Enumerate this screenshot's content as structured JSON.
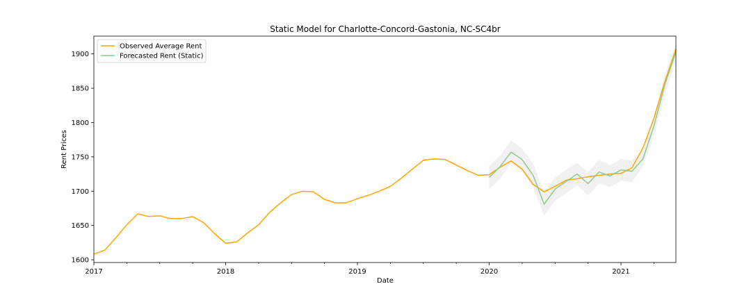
{
  "chart_data": {
    "type": "line",
    "title": "Static Model for Charlotte-Concord-Gastonia, NC-SC4br",
    "xlabel": "Date",
    "ylabel": "Rent Prices",
    "xlim": [
      "2017-01",
      "2021-06"
    ],
    "ylim": [
      1596,
      1926
    ],
    "x_ticks": [
      "2017",
      "2018",
      "2019",
      "2020",
      "2021"
    ],
    "y_ticks": [
      1600,
      1650,
      1700,
      1750,
      1800,
      1850,
      1900
    ],
    "grid": false,
    "legend_position": "top-left",
    "series": [
      {
        "name": "Observed Average Rent",
        "color": "#ffa500",
        "x": [
          "2017-01",
          "2017-02",
          "2017-03",
          "2017-04",
          "2017-05",
          "2017-06",
          "2017-07",
          "2017-08",
          "2017-09",
          "2017-10",
          "2017-11",
          "2017-12",
          "2018-01",
          "2018-02",
          "2018-03",
          "2018-04",
          "2018-05",
          "2018-06",
          "2018-07",
          "2018-08",
          "2018-09",
          "2018-10",
          "2018-11",
          "2018-12",
          "2019-01",
          "2019-02",
          "2019-03",
          "2019-04",
          "2019-05",
          "2019-06",
          "2019-07",
          "2019-08",
          "2019-09",
          "2019-10",
          "2019-11",
          "2019-12",
          "2020-01",
          "2020-02",
          "2020-03",
          "2020-04",
          "2020-05",
          "2020-06",
          "2020-07",
          "2020-08",
          "2020-09",
          "2020-10",
          "2020-11",
          "2020-12",
          "2021-01",
          "2021-02",
          "2021-03",
          "2021-04",
          "2021-05",
          "2021-06"
        ],
        "values": [
          1608,
          1614,
          1632,
          1651,
          1667,
          1663,
          1664,
          1660,
          1660,
          1663,
          1654,
          1638,
          1624,
          1626,
          1639,
          1651,
          1669,
          1683,
          1695,
          1700,
          1699,
          1688,
          1683,
          1683,
          1689,
          1694,
          1700,
          1707,
          1719,
          1732,
          1745,
          1747,
          1746,
          1738,
          1730,
          1723,
          1724,
          1735,
          1744,
          1732,
          1710,
          1699,
          1707,
          1716,
          1718,
          1721,
          1723,
          1725,
          1726,
          1734,
          1763,
          1806,
          1860,
          1907
        ]
      },
      {
        "name": "Forecasted Rent (Static)",
        "color": "#8fc98f",
        "x": [
          "2020-01",
          "2020-02",
          "2020-03",
          "2020-04",
          "2020-05",
          "2020-06",
          "2020-07",
          "2020-08",
          "2020-09",
          "2020-10",
          "2020-11",
          "2020-12",
          "2021-01",
          "2021-02",
          "2021-03",
          "2021-04",
          "2021-05",
          "2021-06"
        ],
        "values": [
          1720,
          1736,
          1757,
          1746,
          1723,
          1681,
          1703,
          1714,
          1725,
          1711,
          1728,
          1722,
          1731,
          1729,
          1747,
          1795,
          1856,
          1903
        ],
        "ci_lower": [
          1703,
          1718,
          1741,
          1729,
          1706,
          1664,
          1686,
          1697,
          1708,
          1694,
          1711,
          1706,
          1715,
          1713,
          1736,
          1780,
          1842,
          1890
        ],
        "ci_upper": [
          1737,
          1752,
          1774,
          1762,
          1740,
          1699,
          1720,
          1731,
          1741,
          1728,
          1745,
          1738,
          1747,
          1745,
          1758,
          1810,
          1870,
          1916
        ]
      }
    ]
  }
}
